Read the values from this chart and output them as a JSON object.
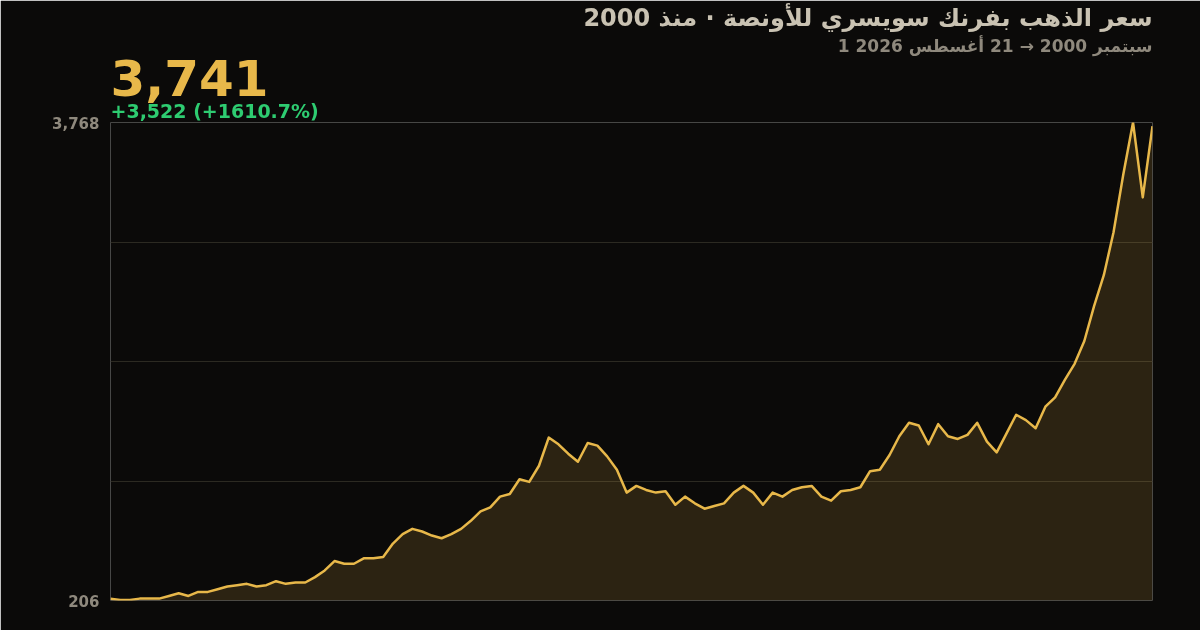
{
  "chart_data": {
    "type": "area",
    "title": "سعر الذهب بفرنك سويسري للأونصة · منذ 2000",
    "subtitle": "1 سبتمبر 2000 → 21 أغسطس 2026",
    "annotations": [
      "3,741",
      "+3,522 (+1610.7%)"
    ],
    "categories": [
      null,
      null,
      null,
      null,
      null,
      null,
      null,
      null,
      null,
      null,
      null,
      null,
      null,
      null,
      null,
      null,
      null,
      null,
      null,
      null,
      null,
      null,
      null,
      null,
      null,
      null,
      null,
      null,
      null,
      null,
      null,
      null,
      null,
      null,
      null,
      null,
      null,
      null,
      null,
      null,
      null,
      null,
      null,
      null,
      null,
      null,
      null,
      null,
      null,
      null,
      null,
      null,
      null,
      null,
      null,
      null,
      null,
      null,
      null,
      null,
      null,
      null,
      null,
      null,
      null,
      null,
      null,
      null,
      null,
      null,
      null,
      null,
      null,
      null,
      null,
      null,
      null,
      null,
      null,
      null,
      null,
      null,
      null,
      null,
      null,
      null,
      null,
      null,
      null,
      null,
      null,
      null,
      null,
      null,
      null,
      null,
      null,
      null,
      null,
      null,
      null,
      null,
      null,
      null,
      null,
      null,
      null,
      null
    ],
    "series": [
      {
        "color": "#e8b84a",
        "values": [
          219,
          210,
          210,
          220,
          220,
          220,
          240,
          260,
          240,
          270,
          270,
          290,
          310,
          320,
          330,
          310,
          320,
          350,
          330,
          340,
          340,
          380,
          430,
          500,
          480,
          480,
          520,
          520,
          530,
          630,
          700,
          740,
          720,
          690,
          670,
          700,
          740,
          800,
          870,
          900,
          980,
          1000,
          1110,
          1090,
          1210,
          1420,
          1370,
          1300,
          1240,
          1380,
          1360,
          1280,
          1180,
          1010,
          1060,
          1030,
          1010,
          1020,
          920,
          980,
          930,
          890,
          910,
          930,
          1010,
          1060,
          1010,
          920,
          1010,
          980,
          1030,
          1050,
          1060,
          980,
          950,
          1020,
          1030,
          1050,
          1170,
          1180,
          1290,
          1430,
          1530,
          1510,
          1370,
          1520,
          1430,
          1410,
          1440,
          1530,
          1390,
          1310,
          1450,
          1590,
          1550,
          1490,
          1650,
          1720,
          1850,
          1970,
          2140,
          2400,
          2630,
          2950,
          3380,
          3768,
          3210,
          3741
        ]
      }
    ],
    "ylim": [
      206,
      3768
    ],
    "yticks": [
      206,
      {
        "value": 1096.5,
        "label": null
      },
      {
        "value": 1987,
        "label": null
      },
      {
        "value": 2877.5,
        "label": null
      },
      {
        "value": 3768,
        "label": "3,768"
      }
    ],
    "grid": "y",
    "tick_labels": "y"
  }
}
